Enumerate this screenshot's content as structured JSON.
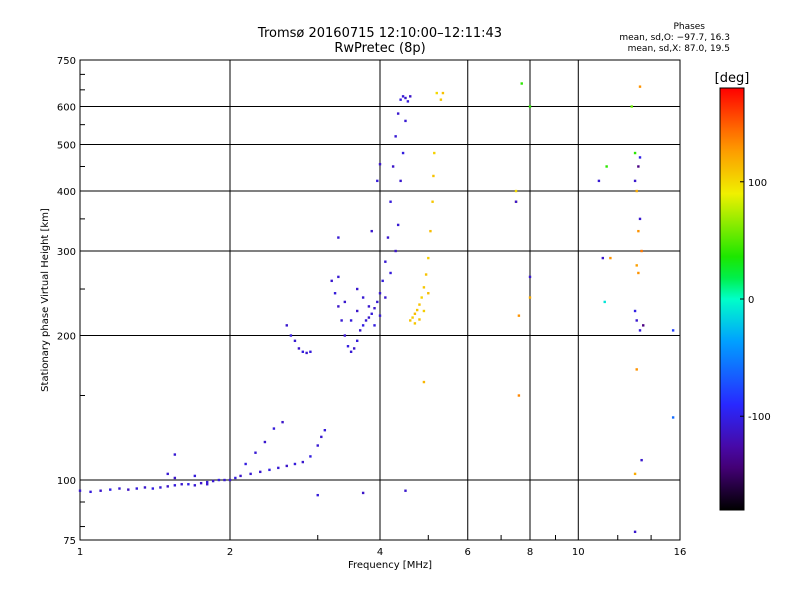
{
  "title": {
    "line1": "Tromsø 20160715 12:10:00–12:11:43",
    "line2": "RwPretec (8p)"
  },
  "stats": {
    "heading": "Phases",
    "o_line": "mean, sd,O: −97.7, 16.3",
    "x_line": "mean, sd,X:  87.0, 19.5"
  },
  "colorbar": {
    "label": "[deg]",
    "range": [
      -180,
      180
    ],
    "ticks": [
      100,
      0,
      -100
    ]
  },
  "chart_data": {
    "type": "scatter",
    "xlabel": "Frequency [MHz]",
    "ylabel": "Stationary phase Virtual Height [km]",
    "xscale": "log",
    "yscale": "log",
    "xlim": [
      1,
      16
    ],
    "ylim": [
      75,
      750
    ],
    "xticks": [
      1,
      2,
      4,
      6,
      8,
      10,
      16
    ],
    "xtick_labels": [
      "1",
      "2",
      "4",
      "6",
      "8",
      "10",
      "16"
    ],
    "yticks": [
      75,
      100,
      200,
      300,
      400,
      500,
      600,
      750
    ],
    "ytick_labels": [
      "75",
      "100",
      "200",
      "300",
      "400",
      "500",
      "600",
      "750"
    ],
    "grid": true,
    "color_encoding": "phase [deg]",
    "series": [
      {
        "points": [
          [
            1.0,
            95,
            -110
          ],
          [
            1.05,
            94.5,
            -105
          ],
          [
            1.1,
            95,
            -112
          ],
          [
            1.15,
            95.5,
            -100
          ],
          [
            1.2,
            96,
            -108
          ],
          [
            1.25,
            95.5,
            -115
          ],
          [
            1.3,
            96,
            -105
          ],
          [
            1.35,
            96.5,
            -110
          ],
          [
            1.4,
            96,
            -102
          ],
          [
            1.45,
            96.5,
            -108
          ],
          [
            1.5,
            97,
            -112
          ],
          [
            1.55,
            97.5,
            -105
          ],
          [
            1.6,
            98,
            -110
          ],
          [
            1.65,
            98,
            -100
          ],
          [
            1.7,
            97.5,
            -108
          ],
          [
            1.75,
            98.5,
            -112
          ],
          [
            1.8,
            99,
            -105
          ],
          [
            1.85,
            99.5,
            -110
          ],
          [
            1.9,
            100,
            -103
          ],
          [
            1.95,
            100,
            -108
          ],
          [
            2.0,
            100,
            -110
          ],
          [
            2.05,
            101,
            -105
          ],
          [
            2.1,
            102,
            -112
          ],
          [
            2.2,
            103,
            -108
          ],
          [
            2.3,
            104,
            -110
          ],
          [
            2.4,
            105,
            -102
          ],
          [
            2.5,
            106,
            -108
          ],
          [
            2.6,
            107,
            -112
          ],
          [
            2.7,
            108,
            -105
          ],
          [
            2.8,
            109,
            -110
          ],
          [
            2.9,
            112,
            -103
          ],
          [
            3.0,
            118,
            -108
          ],
          [
            3.05,
            123,
            -110
          ],
          [
            3.1,
            127,
            -105
          ],
          [
            1.5,
            103,
            -108
          ],
          [
            1.55,
            101,
            -112
          ],
          [
            1.7,
            102,
            -105
          ],
          [
            1.8,
            98,
            -110
          ],
          [
            2.15,
            108,
            -103
          ],
          [
            2.25,
            114,
            -108
          ],
          [
            2.35,
            120,
            -110
          ],
          [
            2.45,
            128,
            -105
          ],
          [
            2.55,
            132,
            -112
          ],
          [
            2.6,
            210,
            -110
          ],
          [
            2.65,
            200,
            -105
          ],
          [
            2.7,
            195,
            -108
          ],
          [
            2.75,
            188,
            -112
          ],
          [
            2.8,
            185,
            -103
          ],
          [
            2.85,
            184,
            -110
          ],
          [
            2.9,
            185,
            -105
          ],
          [
            3.2,
            260,
            -110
          ],
          [
            3.25,
            245,
            -105
          ],
          [
            3.3,
            230,
            -112
          ],
          [
            3.35,
            215,
            -108
          ],
          [
            3.4,
            200,
            -110
          ],
          [
            3.45,
            190,
            -103
          ],
          [
            3.5,
            185,
            -108
          ],
          [
            3.55,
            188,
            -112
          ],
          [
            3.6,
            195,
            -105
          ],
          [
            3.65,
            205,
            -110
          ],
          [
            3.7,
            210,
            -102
          ],
          [
            3.75,
            215,
            -108
          ],
          [
            3.8,
            218,
            -110
          ],
          [
            3.85,
            222,
            -105
          ],
          [
            3.9,
            228,
            -112
          ],
          [
            3.95,
            235,
            -108
          ],
          [
            4.0,
            245,
            -110
          ],
          [
            4.05,
            260,
            -103
          ],
          [
            4.1,
            285,
            -108
          ],
          [
            4.15,
            320,
            -110
          ],
          [
            4.2,
            380,
            -105
          ],
          [
            4.25,
            450,
            -112
          ],
          [
            4.3,
            520,
            -108
          ],
          [
            4.35,
            580,
            -110
          ],
          [
            4.4,
            620,
            -103
          ],
          [
            4.45,
            630,
            -108
          ],
          [
            4.5,
            625,
            -110
          ],
          [
            4.55,
            615,
            -105
          ],
          [
            4.6,
            630,
            -112
          ],
          [
            3.3,
            265,
            -108
          ],
          [
            3.4,
            235,
            -110
          ],
          [
            3.5,
            215,
            -105
          ],
          [
            3.6,
            225,
            -112
          ],
          [
            3.7,
            240,
            -108
          ],
          [
            3.8,
            230,
            -110
          ],
          [
            3.9,
            210,
            -103
          ],
          [
            4.0,
            220,
            -108
          ],
          [
            4.1,
            240,
            -110
          ],
          [
            4.2,
            270,
            -105
          ],
          [
            4.3,
            300,
            -112
          ],
          [
            4.35,
            340,
            -108
          ],
          [
            4.4,
            420,
            -110
          ],
          [
            4.45,
            480,
            -103
          ],
          [
            4.5,
            560,
            -108
          ],
          [
            3.85,
            330,
            -110
          ],
          [
            3.95,
            420,
            -105
          ],
          [
            4.0,
            455,
            -112
          ],
          [
            3.3,
            320,
            -108
          ],
          [
            3.6,
            250,
            -110
          ],
          [
            1.55,
            113,
            -108
          ],
          [
            4.5,
            95,
            -110
          ],
          [
            3.0,
            93,
            -105
          ],
          [
            3.7,
            94,
            -112
          ],
          [
            4.6,
            215,
            110
          ],
          [
            4.65,
            218,
            105
          ],
          [
            4.7,
            222,
            112
          ],
          [
            4.75,
            226,
            108
          ],
          [
            4.8,
            232,
            110
          ],
          [
            4.85,
            240,
            103
          ],
          [
            4.9,
            252,
            108
          ],
          [
            4.95,
            268,
            110
          ],
          [
            5.0,
            290,
            105
          ],
          [
            5.05,
            330,
            112
          ],
          [
            5.1,
            380,
            108
          ],
          [
            5.12,
            430,
            110
          ],
          [
            5.14,
            480,
            103
          ],
          [
            4.7,
            212,
            108
          ],
          [
            4.8,
            216,
            110
          ],
          [
            4.9,
            225,
            105
          ],
          [
            5.0,
            245,
            112
          ],
          [
            5.3,
            620,
            108
          ],
          [
            5.35,
            640,
            110
          ],
          [
            5.2,
            640,
            100
          ],
          [
            4.9,
            160,
            115
          ],
          [
            7.5,
            400,
            100
          ],
          [
            7.5,
            380,
            120
          ],
          [
            7.6,
            220,
            130
          ],
          [
            7.6,
            150,
            135
          ],
          [
            7.7,
            670,
            40
          ],
          [
            8.0,
            600,
            40
          ],
          [
            8.0,
            240,
            120
          ],
          [
            8.0,
            265,
            -110
          ],
          [
            7.5,
            380,
            -110
          ],
          [
            11.4,
            450,
            40
          ],
          [
            11.0,
            420,
            -108
          ],
          [
            11.2,
            290,
            -110
          ],
          [
            11.6,
            290,
            130
          ],
          [
            11.3,
            235,
            -10
          ],
          [
            12.8,
            600,
            55
          ],
          [
            13.0,
            480,
            40
          ],
          [
            13.2,
            450,
            -140
          ],
          [
            13.0,
            420,
            -110
          ],
          [
            13.1,
            400,
            120
          ],
          [
            13.3,
            350,
            -110
          ],
          [
            13.2,
            330,
            130
          ],
          [
            13.4,
            300,
            140
          ],
          [
            13.1,
            280,
            125
          ],
          [
            13.2,
            270,
            130
          ],
          [
            13.0,
            225,
            -100
          ],
          [
            13.1,
            215,
            -110
          ],
          [
            13.3,
            205,
            -105
          ],
          [
            13.5,
            210,
            -140
          ],
          [
            13.1,
            170,
            130
          ],
          [
            13.4,
            110,
            -110
          ],
          [
            13.0,
            103,
            120
          ],
          [
            13.0,
            78,
            -110
          ],
          [
            13.3,
            660,
            130
          ],
          [
            13.3,
            470,
            -100
          ],
          [
            15.5,
            205,
            -80
          ],
          [
            15.5,
            135,
            -60
          ]
        ]
      }
    ]
  }
}
